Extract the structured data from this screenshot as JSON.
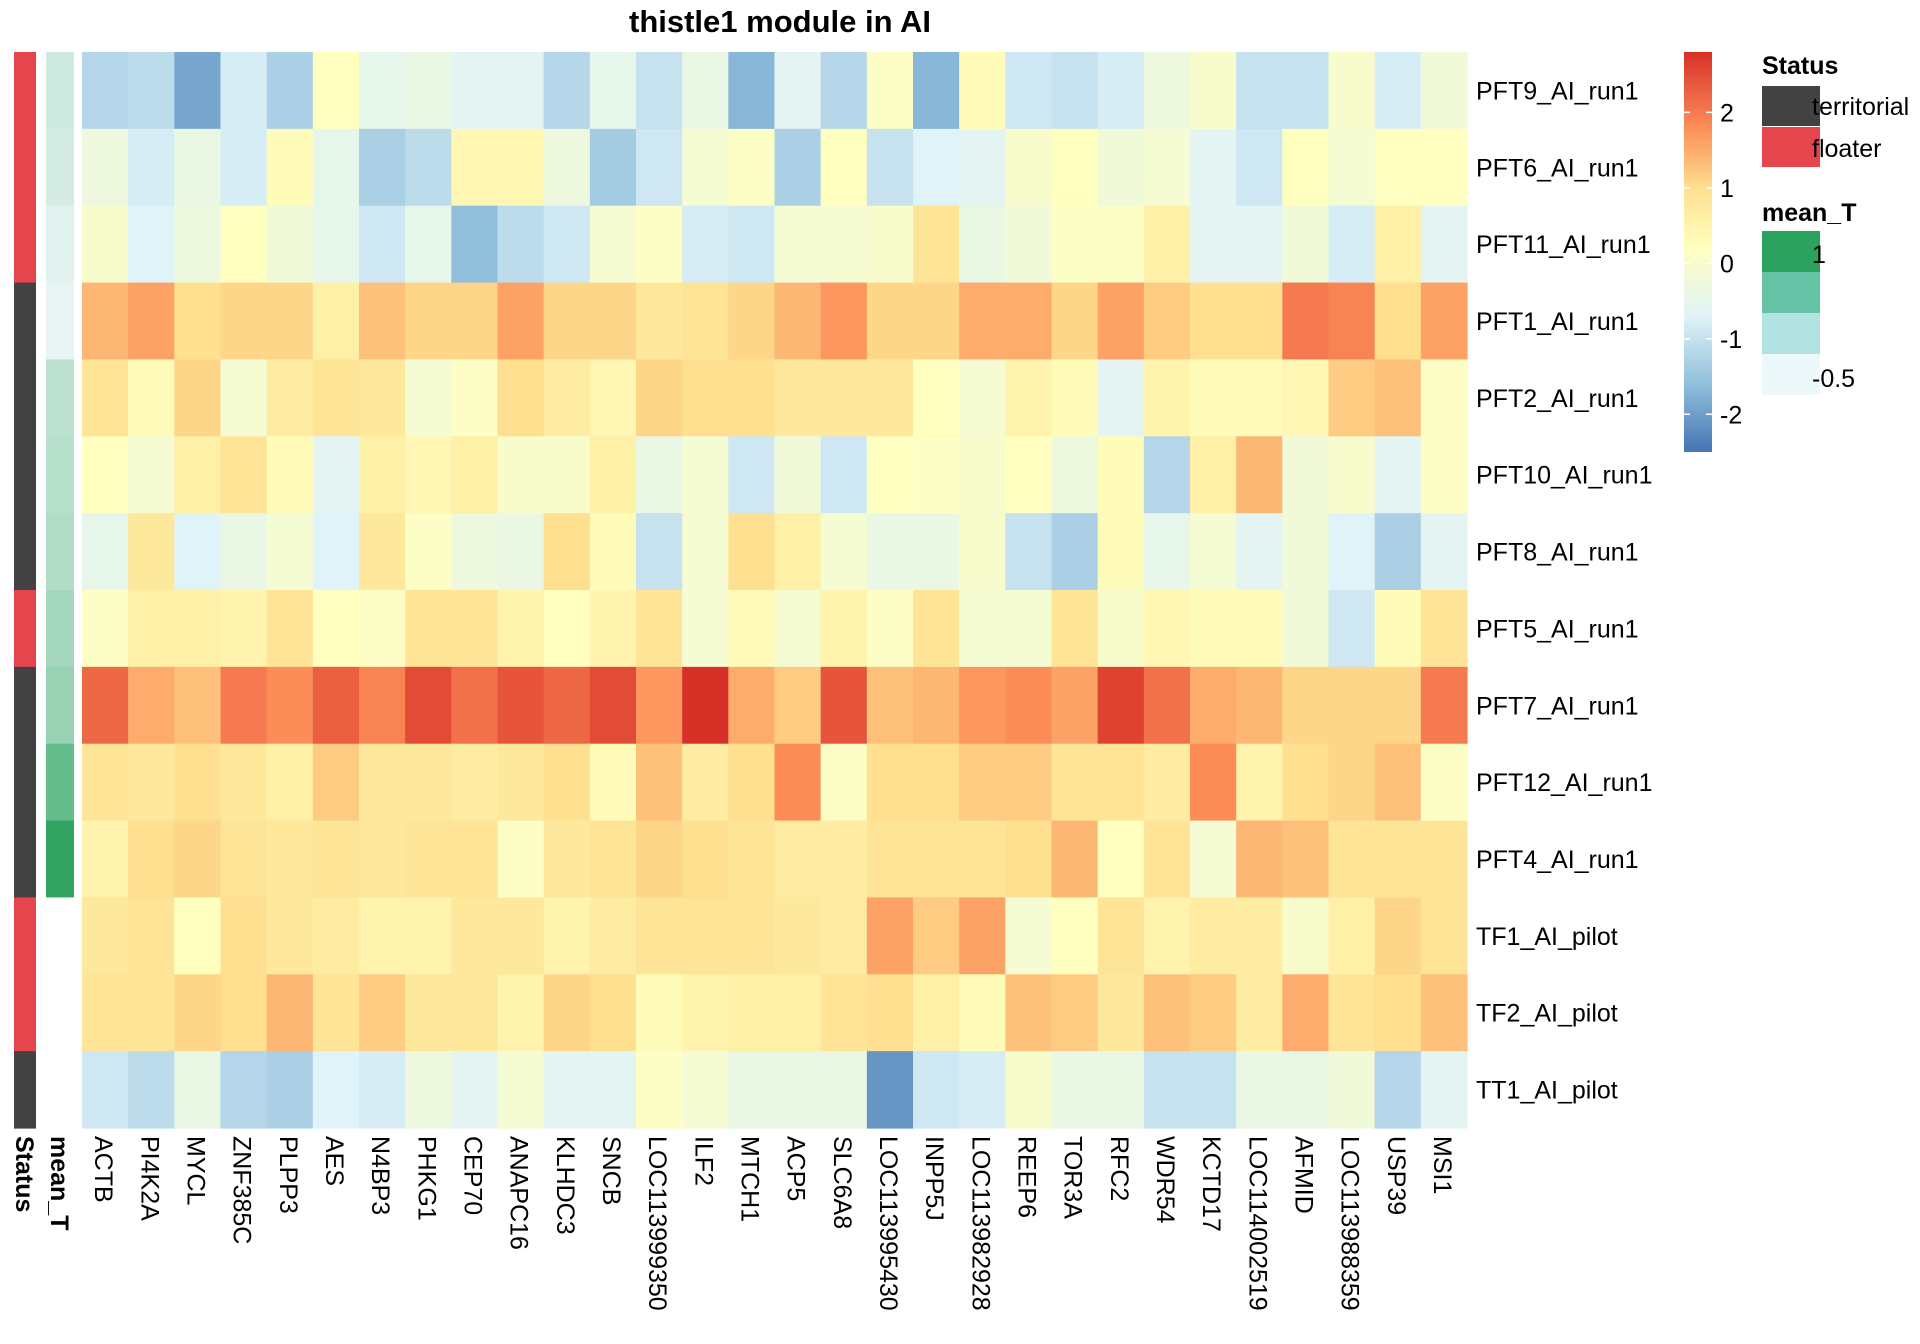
{
  "chart_data": {
    "type": "heatmap",
    "title": "thistle1 module in AI",
    "rows": [
      "PFT9_AI_run1",
      "PFT6_AI_run1",
      "PFT11_AI_run1",
      "PFT1_AI_run1",
      "PFT2_AI_run1",
      "PFT10_AI_run1",
      "PFT8_AI_run1",
      "PFT5_AI_run1",
      "PFT7_AI_run1",
      "PFT12_AI_run1",
      "PFT4_AI_run1",
      "TF1_AI_pilot",
      "TF2_AI_pilot",
      "TT1_AI_pilot"
    ],
    "columns": [
      "ACTB",
      "PI4K2A",
      "MYCL",
      "ZNF385C",
      "PLPP3",
      "AES",
      "N4BP3",
      "PHKG1",
      "CEP70",
      "ANAPC16",
      "KLHDC3",
      "SNCB",
      "LOC113999350",
      "ILF2",
      "MTCH1",
      "ACP5",
      "SLC6A8",
      "LOC113995430",
      "INPP5J",
      "LOC113982928",
      "REEP6",
      "TOR3A",
      "RFC2",
      "WDR54",
      "KCTD17",
      "LOC114002519",
      "AFMID",
      "LOC113988359",
      "USP39",
      "MSI1"
    ],
    "values": [
      [
        -1.2,
        -1.1,
        -1.9,
        -0.8,
        -1.3,
        0.2,
        -0.5,
        -0.4,
        -0.6,
        -0.6,
        -1.2,
        -0.5,
        -1.0,
        -0.4,
        -1.7,
        -0.6,
        -1.2,
        0.1,
        -1.7,
        0.3,
        -0.9,
        -1.0,
        -0.8,
        -0.3,
        0.0,
        -1.0,
        -1.0,
        0.0,
        -0.8,
        -0.2
      ],
      [
        -0.3,
        -0.8,
        -0.4,
        -0.8,
        0.3,
        -0.5,
        -1.3,
        -1.1,
        0.4,
        0.4,
        -0.3,
        -1.4,
        -0.9,
        -0.1,
        0.1,
        -1.3,
        0.2,
        -1.0,
        -0.7,
        -0.6,
        0.0,
        0.2,
        -0.2,
        -0.1,
        -0.6,
        -0.9,
        0.2,
        -0.1,
        0.2,
        0.2
      ],
      [
        0.0,
        -0.7,
        -0.3,
        0.2,
        -0.2,
        -0.5,
        -0.9,
        -0.5,
        -1.6,
        -1.1,
        -0.9,
        -0.1,
        0.1,
        -0.8,
        -0.9,
        -0.1,
        -0.1,
        0.0,
        0.9,
        -0.4,
        -0.2,
        0.1,
        0.1,
        0.6,
        -0.6,
        -0.6,
        -0.2,
        -0.8,
        0.6,
        -0.6
      ],
      [
        1.4,
        1.6,
        1.0,
        1.1,
        1.1,
        0.6,
        1.3,
        1.1,
        1.1,
        1.6,
        1.1,
        1.1,
        0.8,
        0.9,
        1.1,
        1.4,
        1.7,
        1.1,
        1.1,
        1.5,
        1.5,
        1.1,
        1.6,
        1.2,
        1.0,
        1.0,
        2.0,
        1.9,
        1.0,
        1.6
      ],
      [
        0.9,
        0.3,
        1.1,
        -0.1,
        0.7,
        0.9,
        0.8,
        -0.1,
        0.1,
        1.0,
        0.7,
        0.4,
        1.1,
        1.0,
        1.0,
        0.8,
        0.8,
        0.8,
        0.2,
        -0.1,
        0.5,
        0.3,
        -0.6,
        0.5,
        0.3,
        0.3,
        0.4,
        1.2,
        1.3,
        0.1
      ],
      [
        0.2,
        -0.1,
        0.6,
        0.9,
        0.3,
        -0.6,
        0.6,
        0.4,
        0.6,
        0.0,
        0.0,
        0.6,
        -0.4,
        -0.1,
        -0.9,
        -0.2,
        -0.9,
        0.2,
        0.1,
        0.0,
        0.2,
        -0.3,
        0.3,
        -1.2,
        0.6,
        1.4,
        -0.2,
        0.0,
        -0.6,
        0.1
      ],
      [
        -0.5,
        0.8,
        -0.7,
        -0.4,
        -0.1,
        -0.7,
        0.8,
        0.1,
        -0.3,
        -0.4,
        1.0,
        0.3,
        -1.0,
        -0.1,
        1.0,
        0.6,
        -0.1,
        -0.4,
        -0.4,
        0.0,
        -1.0,
        -1.3,
        0.3,
        -0.5,
        -0.1,
        -0.6,
        -0.2,
        -0.7,
        -1.3,
        -0.6
      ],
      [
        0.1,
        0.6,
        0.6,
        0.5,
        0.9,
        0.2,
        0.1,
        0.9,
        0.9,
        0.5,
        0.2,
        0.5,
        0.9,
        -0.1,
        0.3,
        -0.1,
        0.5,
        0.1,
        0.9,
        -0.1,
        -0.1,
        0.9,
        0.0,
        0.4,
        0.3,
        0.3,
        -0.2,
        -0.9,
        0.3,
        0.9
      ],
      [
        2.2,
        1.5,
        1.3,
        2.0,
        1.8,
        2.3,
        1.9,
        2.5,
        2.1,
        2.4,
        2.2,
        2.5,
        1.7,
        2.8,
        1.5,
        1.2,
        2.4,
        1.3,
        1.4,
        1.7,
        1.8,
        1.6,
        2.6,
        2.1,
        1.5,
        1.4,
        1.1,
        1.1,
        1.1,
        2.0
      ],
      [
        0.9,
        0.8,
        1.0,
        0.8,
        0.6,
        1.2,
        0.8,
        0.8,
        0.7,
        0.8,
        1.0,
        0.3,
        1.3,
        0.7,
        1.0,
        1.8,
        0.1,
        1.0,
        1.0,
        1.2,
        1.2,
        0.9,
        0.9,
        0.7,
        1.8,
        0.5,
        1.0,
        1.1,
        1.3,
        0.1
      ],
      [
        0.5,
        1.0,
        1.1,
        0.9,
        0.8,
        0.9,
        0.8,
        0.9,
        0.9,
        0.1,
        0.8,
        0.9,
        1.1,
        1.0,
        0.9,
        0.7,
        0.7,
        0.9,
        0.9,
        0.9,
        1.0,
        1.4,
        0.2,
        0.9,
        -0.1,
        1.4,
        1.3,
        0.9,
        0.9,
        0.9
      ],
      [
        0.8,
        0.9,
        0.2,
        1.0,
        0.8,
        0.7,
        0.5,
        0.5,
        0.8,
        0.8,
        0.5,
        0.7,
        0.9,
        0.9,
        0.9,
        0.8,
        0.7,
        1.6,
        1.2,
        1.6,
        -0.1,
        0.2,
        0.9,
        0.5,
        0.7,
        0.7,
        0.0,
        0.6,
        1.1,
        0.9
      ],
      [
        0.9,
        0.9,
        1.1,
        1.0,
        1.4,
        0.9,
        1.2,
        0.8,
        0.8,
        0.5,
        1.1,
        1.0,
        0.3,
        0.5,
        0.6,
        0.6,
        0.9,
        1.0,
        0.6,
        0.3,
        1.3,
        1.2,
        0.8,
        1.3,
        1.2,
        0.7,
        1.5,
        0.9,
        1.0,
        1.3
      ],
      [
        -0.9,
        -1.1,
        -0.4,
        -1.2,
        -1.3,
        -0.7,
        -0.8,
        -0.3,
        -0.6,
        -0.1,
        -0.6,
        -0.6,
        0.1,
        -0.1,
        -0.4,
        -0.4,
        -0.4,
        -2.1,
        -0.9,
        -0.8,
        0.0,
        -0.4,
        -0.4,
        -1.0,
        -1.0,
        -0.4,
        -0.4,
        -0.2,
        -1.2,
        -0.6
      ]
    ],
    "annotations": {
      "Status": [
        "floater",
        "floater",
        "floater",
        "territorial",
        "territorial",
        "territorial",
        "territorial",
        "floater",
        "territorial",
        "territorial",
        "territorial",
        "floater",
        "floater",
        "territorial"
      ],
      "mean_T": [
        -0.5,
        -0.55,
        -0.65,
        -0.7,
        -0.35,
        -0.3,
        -0.25,
        -0.15,
        -0.05,
        0.45,
        0.95,
        null,
        null,
        null
      ]
    },
    "color_scale": {
      "stops": [
        "#4575b4",
        "#91bfdb",
        "#e0f3f8",
        "#ffffbf",
        "#fee090",
        "#fc8d59",
        "#d73027"
      ],
      "domain": [
        -2.5,
        -1.6,
        -0.7,
        0.2,
        1.0,
        1.8,
        2.8
      ],
      "ticks": [
        "2",
        "1",
        "0",
        "-1",
        "-2"
      ]
    },
    "annotation_colors": {
      "territorial": "#424242",
      "floater": "#e5464d",
      "mean_T_low": "#f0f8fa",
      "mean_T_high": "#2ca25f",
      "missing": "#ffffff"
    },
    "legends": {
      "status_title": "Status",
      "status_labels": [
        "territorial",
        "floater"
      ],
      "mean_t_title": "mean_T",
      "mean_t_ticks": [
        "1",
        "-0.5"
      ]
    },
    "annotation_labels": [
      "Status",
      "mean_T"
    ]
  }
}
